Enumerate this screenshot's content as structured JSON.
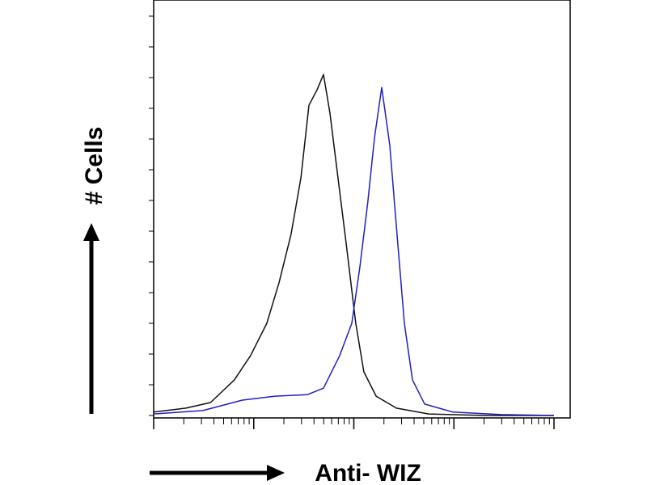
{
  "chart_data": {
    "type": "line",
    "xlabel": "Anti- WIZ",
    "ylabel": "# Cells",
    "xscale": "log",
    "xlim": [
      1,
      10000
    ],
    "xticks": [
      1,
      10,
      100,
      1000,
      10000
    ],
    "minor_ticks": true,
    "ylim": [
      0,
      130
    ],
    "yticks": [
      0,
      10,
      20,
      30,
      40,
      50,
      60,
      70,
      80,
      90,
      100,
      110,
      120,
      130
    ],
    "series": [
      {
        "color": "#111111",
        "x": [
          1,
          2.1,
          3.7,
          6.4,
          9.3,
          13.5,
          17.9,
          23.6,
          29.6,
          35.6,
          42.9,
          49.8,
          57.8,
          69.5,
          83.7,
          104.6,
          126,
          167,
          266,
          559,
          2057,
          10000
        ],
        "values": [
          1.1,
          2.4,
          4.2,
          11.6,
          19.5,
          30,
          43.2,
          59,
          77.4,
          101,
          106,
          111,
          98.4,
          77.4,
          56.3,
          30,
          14.2,
          6.3,
          2.4,
          0.5,
          0,
          0
        ]
      },
      {
        "color": "#2020c0",
        "x": [
          1,
          3.1,
          7.7,
          16.3,
          34.3,
          49.8,
          72.2,
          95.4,
          115,
          138,
          161,
          190,
          229,
          266,
          320,
          385,
          510,
          977,
          2985,
          10000
        ],
        "values": [
          0.5,
          1.6,
          5,
          6.3,
          6.8,
          8.9,
          19.5,
          30,
          48.4,
          69.5,
          90.5,
          106.8,
          87.9,
          61.6,
          30,
          11.6,
          3.7,
          1.1,
          0.3,
          0
        ]
      }
    ]
  }
}
